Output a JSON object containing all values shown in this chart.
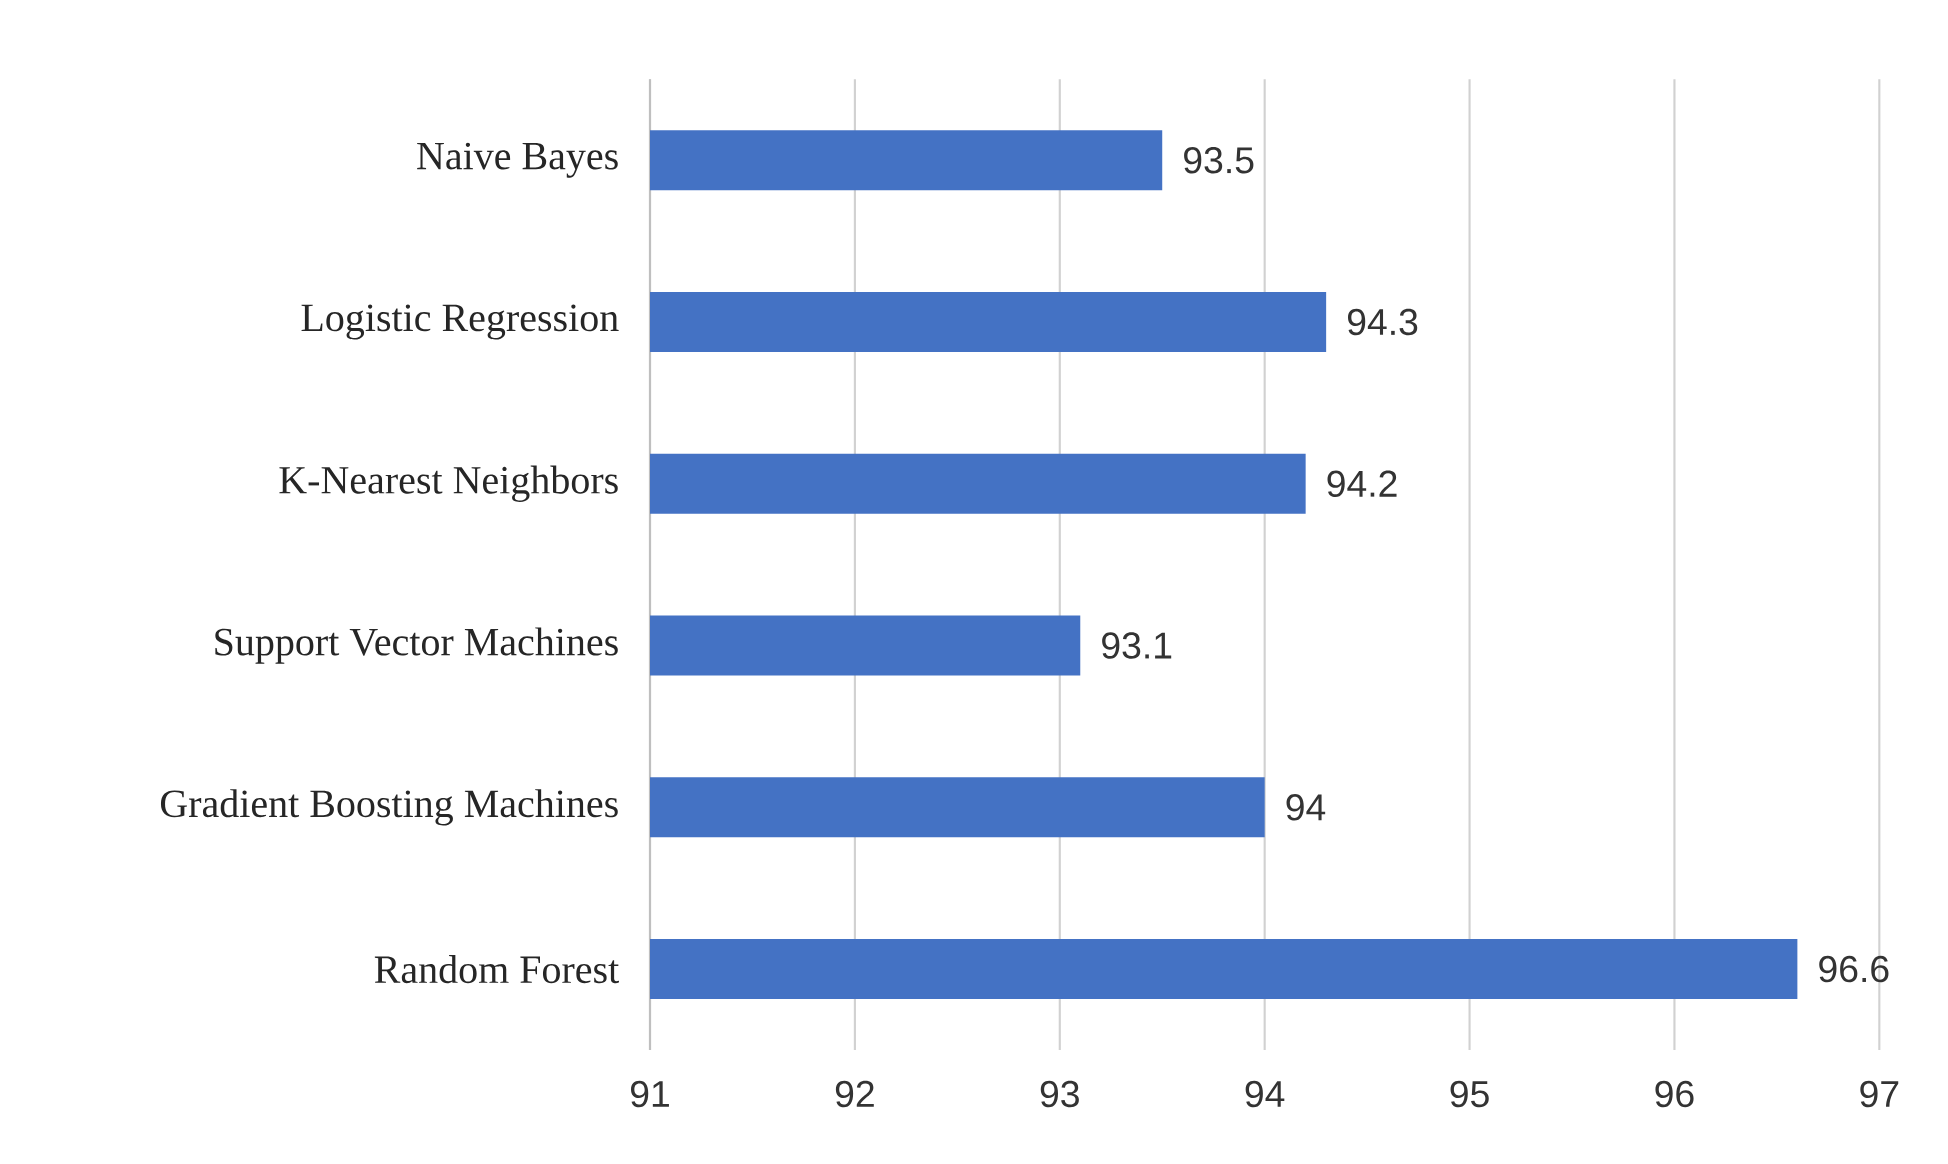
{
  "chart_data": {
    "type": "bar",
    "orientation": "horizontal",
    "categories": [
      "Naive Bayes",
      "Logistic Regression",
      "K-Nearest Neighbors",
      "Support Vector Machines",
      "Gradient Boosting Machines",
      "Random Forest"
    ],
    "values": [
      93.5,
      94.3,
      94.2,
      93.1,
      94,
      96.6
    ],
    "color": "#4472c4",
    "xlim": [
      91,
      97
    ],
    "xticks": [
      91,
      92,
      93,
      94,
      95,
      96,
      97
    ],
    "grid": "x",
    "data_labels": true
  }
}
